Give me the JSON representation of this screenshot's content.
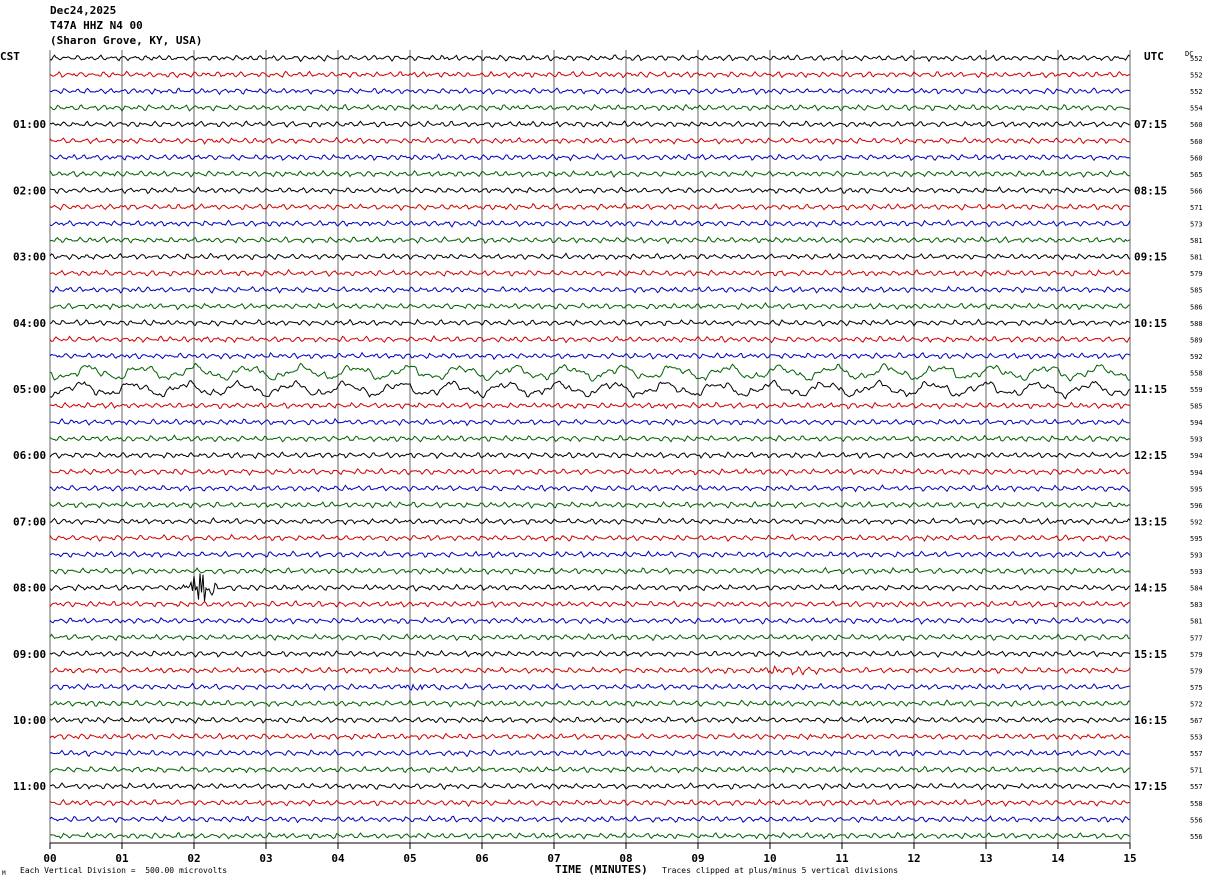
{
  "header": {
    "date": "Dec24,2025",
    "station": "T47A HHZ N4 00",
    "location": "(Sharon Grove, KY, USA)"
  },
  "labels": {
    "left_tz": "CST",
    "right_tz": "UTC",
    "dc_label": "DC",
    "xlabel": "TIME (MINUTES)",
    "scale_note": "Each Vertical Division =  500.00 microvolts",
    "clip_note": "Traces clipped at plus/minus 5 vertical divisions",
    "corner_mark": "M"
  },
  "chart_data": {
    "type": "line",
    "x_ticks": [
      "00",
      "01",
      "02",
      "03",
      "04",
      "05",
      "06",
      "07",
      "08",
      "09",
      "10",
      "11",
      "12",
      "13",
      "14",
      "15"
    ],
    "xlim": [
      0,
      15
    ],
    "trace_colors": [
      "#000000",
      "#d00000",
      "#0000c0",
      "#006000"
    ],
    "trace_count": 48,
    "left_hour_labels": [
      "01:00",
      "02:00",
      "03:00",
      "04:00",
      "05:00",
      "06:00",
      "07:00",
      "08:00",
      "09:00",
      "10:00",
      "11:00"
    ],
    "right_hour_labels": [
      "07:15",
      "08:15",
      "09:15",
      "10:15",
      "11:15",
      "12:15",
      "13:15",
      "14:15",
      "15:15",
      "16:15",
      "17:15"
    ],
    "dc_offsets": [
      "552",
      "552",
      "552",
      "554",
      "560",
      "560",
      "560",
      "565",
      "566",
      "571",
      "573",
      "581",
      "581",
      "579",
      "585",
      "586",
      "588",
      "589",
      "592",
      "558",
      "559",
      "585",
      "594",
      "593",
      "594",
      "594",
      "595",
      "596",
      "592",
      "595",
      "593",
      "593",
      "584",
      "583",
      "581",
      "577",
      "579",
      "579",
      "575",
      "572",
      "567",
      "553",
      "557",
      "571",
      "557",
      "558",
      "556",
      "556"
    ],
    "events": [
      {
        "trace": 32,
        "start_min": 1.85,
        "end_min": 2.35,
        "amplitude": "large"
      },
      {
        "trace": 38,
        "start_min": 4.7,
        "end_min": 5.6,
        "amplitude": "moderate"
      },
      {
        "trace": 37,
        "start_min": 9.8,
        "end_min": 10.8,
        "amplitude": "moderate"
      },
      {
        "trace": 19,
        "start_min": 0,
        "end_min": 15,
        "amplitude": "long-period"
      },
      {
        "trace": 20,
        "start_min": 0,
        "end_min": 15,
        "amplitude": "long-period"
      }
    ]
  }
}
